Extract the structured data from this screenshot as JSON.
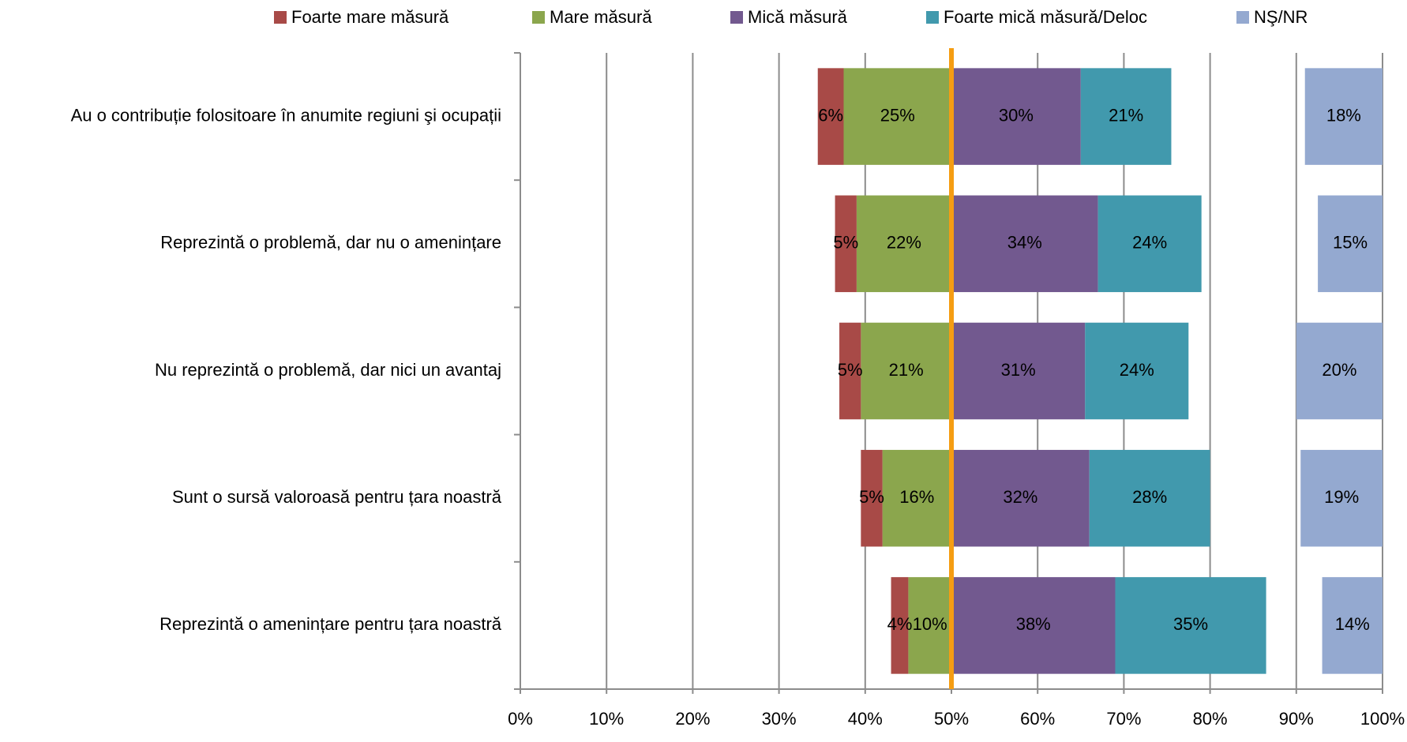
{
  "chart_data": {
    "type": "diverging_bar",
    "categories": [
      "Au o contribuție folositoare în anumite regiuni şi ocupații",
      "Reprezintă o problemă, dar nu o amenințare",
      "Nu reprezintă o problemă, dar nici un avantaj",
      "Sunt o sursă valoroasă pentru țara noastră",
      "Reprezintă o amenințare pentru țara noastră"
    ],
    "series": [
      {
        "name": "Foarte mare măsură",
        "color": "#a84a47",
        "values": [
          6,
          5,
          5,
          5,
          4
        ],
        "value_labels": [
          "6%",
          "5%",
          "5%",
          "5%",
          "4%"
        ]
      },
      {
        "name": "Mare măsură",
        "color": "#8ba64d",
        "values": [
          25,
          22,
          21,
          16,
          10
        ],
        "value_labels": [
          "25%",
          "22%",
          "21%",
          "16%",
          "10%"
        ]
      },
      {
        "name": "Mică măsură",
        "color": "#72598f",
        "values": [
          30,
          34,
          31,
          32,
          38
        ],
        "value_labels": [
          "30%",
          "34%",
          "31%",
          "32%",
          "38%"
        ]
      },
      {
        "name": "Foarte mică măsură/Deloc",
        "color": "#4199ad",
        "values": [
          21,
          24,
          24,
          28,
          35
        ],
        "value_labels": [
          "21%",
          "24%",
          "24%",
          "28%",
          "35%"
        ]
      },
      {
        "name": "NŞ/NR",
        "color": "#94a9d0",
        "values": [
          18,
          15,
          20,
          19,
          14
        ],
        "value_labels": [
          "18%",
          "15%",
          "20%",
          "19%",
          "14%"
        ]
      }
    ],
    "xlim": [
      0,
      100
    ],
    "xticks": [
      {
        "value": 0,
        "label": "0%"
      },
      {
        "value": 10,
        "label": "10%"
      },
      {
        "value": 20,
        "label": "20%"
      },
      {
        "value": 30,
        "label": "30%"
      },
      {
        "value": 40,
        "label": "40%"
      },
      {
        "value": 50,
        "label": "50%"
      },
      {
        "value": 60,
        "label": "60%"
      },
      {
        "value": 70,
        "label": "70%"
      },
      {
        "value": 80,
        "label": "80%"
      },
      {
        "value": 90,
        "label": "90%"
      },
      {
        "value": 100,
        "label": "100%"
      }
    ],
    "reference_line": 50,
    "reference_color": "#f59d12",
    "grid": true,
    "legend": "top"
  }
}
